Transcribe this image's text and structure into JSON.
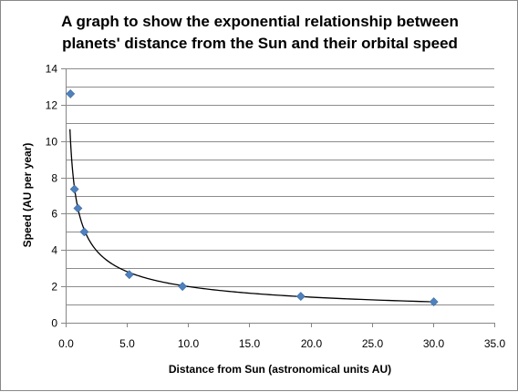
{
  "chart_data": {
    "type": "scatter",
    "title_lines": [
      "A graph to show the exponential relationship between",
      "planets' distance from the Sun and their orbital speed"
    ],
    "xlabel": "Distance from Sun (astronomical units AU)",
    "ylabel": "Speed (AU per year)",
    "xlim": [
      0,
      35
    ],
    "ylim": [
      0,
      14
    ],
    "x_ticks": [
      0,
      5,
      10,
      15,
      20,
      25,
      30,
      35
    ],
    "x_tick_labels": [
      "0.0",
      "5.0",
      "10.0",
      "15.0",
      "20.0",
      "25.0",
      "30.0",
      "35.0"
    ],
    "y_ticks": [
      0,
      2,
      4,
      6,
      8,
      10,
      12,
      14
    ],
    "y_tick_labels": [
      "0",
      "2",
      "4",
      "6",
      "8",
      "10",
      "12",
      "14"
    ],
    "grid": "horizontal",
    "legend": "none",
    "series": [
      {
        "marker": "diamond",
        "color": "#4f81bd",
        "points": [
          {
            "x": 0.39,
            "y": 12.6
          },
          {
            "x": 0.72,
            "y": 7.35
          },
          {
            "x": 1.0,
            "y": 6.3
          },
          {
            "x": 1.52,
            "y": 5.0
          },
          {
            "x": 5.2,
            "y": 2.65
          },
          {
            "x": 9.54,
            "y": 2.0
          },
          {
            "x": 19.2,
            "y": 1.45
          },
          {
            "x": 30.06,
            "y": 1.15
          }
        ]
      }
    ],
    "trendline": {
      "type": "power",
      "color": "#000000",
      "coefficient": 6.3,
      "exponent": -0.5,
      "x_range": [
        0.35,
        30.06
      ]
    }
  }
}
